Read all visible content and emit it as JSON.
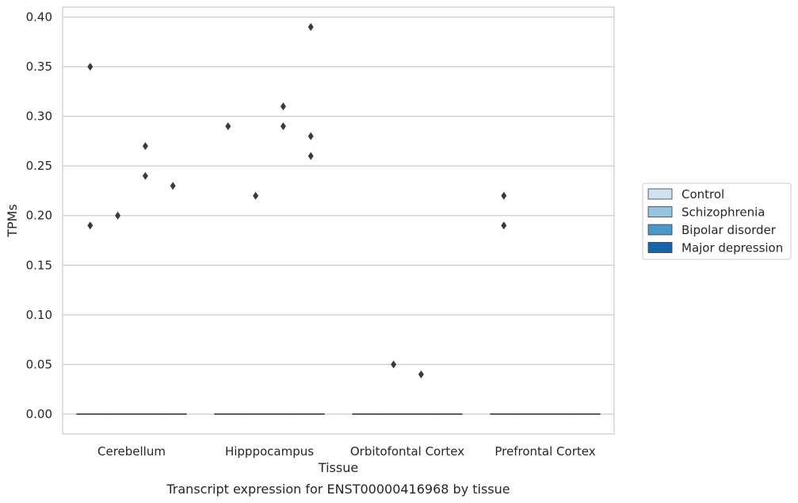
{
  "chart_data": {
    "type": "box",
    "xlabel": "Tissue",
    "ylabel": "TPMs",
    "caption": "Transcript expression for ENST00000416968 by tissue",
    "ylim": [
      -0.02,
      0.41
    ],
    "yticks": [
      "0.00",
      "0.05",
      "0.10",
      "0.15",
      "0.20",
      "0.25",
      "0.30",
      "0.35",
      "0.40"
    ],
    "ytick_values": [
      0.0,
      0.05,
      0.1,
      0.15,
      0.2,
      0.25,
      0.3,
      0.35,
      0.4
    ],
    "grid": true,
    "legend_position": "right",
    "categories": [
      "Cerebellum",
      "Hipppocampus",
      "Orbitofontal Cortex",
      "Prefrontal Cortex"
    ],
    "series": [
      {
        "name": "Control",
        "color": "#d0e1f2",
        "box": [
          {
            "median": 0
          },
          {
            "median": 0
          },
          {
            "median": 0
          },
          {
            "median": 0
          }
        ],
        "outliers": [
          [
            0.35,
            0.19
          ],
          [
            0.29
          ],
          [],
          [
            0.22,
            0.19
          ]
        ]
      },
      {
        "name": "Schizophrenia",
        "color": "#94c4df",
        "box": [
          {
            "median": 0
          },
          {
            "median": 0
          },
          {
            "median": 0
          },
          {
            "median": 0
          }
        ],
        "outliers": [
          [
            0.2
          ],
          [
            0.22
          ],
          [
            0.05
          ],
          []
        ]
      },
      {
        "name": "Bipolar disorder",
        "color": "#4a98c9",
        "box": [
          {
            "median": 0
          },
          {
            "median": 0
          },
          {
            "median": 0
          },
          {
            "median": 0
          }
        ],
        "outliers": [
          [
            0.27,
            0.24
          ],
          [
            0.31,
            0.29
          ],
          [
            0.04
          ],
          []
        ]
      },
      {
        "name": "Major depression",
        "color": "#1764ab",
        "box": [
          {
            "median": 0
          },
          {
            "median": 0
          },
          {
            "median": 0
          },
          {
            "median": 0
          }
        ],
        "outliers": [
          [
            0.23
          ],
          [
            0.39,
            0.28,
            0.26
          ],
          [],
          []
        ]
      }
    ],
    "colors": {
      "grid": "#cccccc",
      "frame": "#cccccc",
      "marker": "#3a3a3a",
      "median": "#3a3a3a"
    }
  }
}
